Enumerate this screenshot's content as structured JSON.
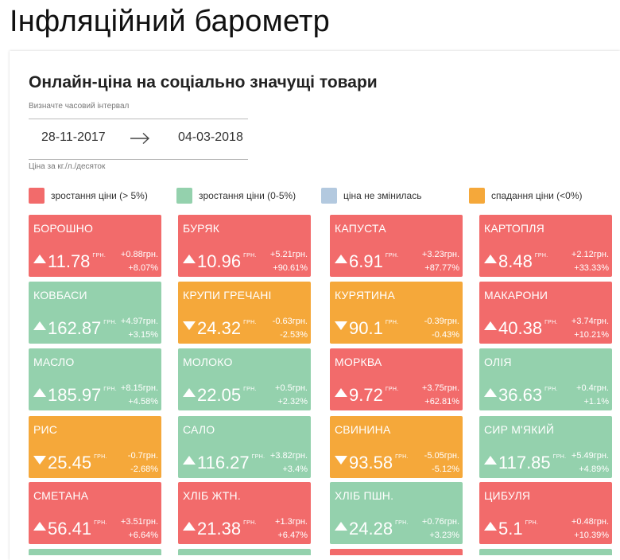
{
  "page": {
    "title": "Інфляційний барометр"
  },
  "widget": {
    "title": "Онлайн-ціна на соціально значущі товари",
    "interval_label": "Визначте часовий інтервал",
    "date_from": "28-11-2017",
    "date_to": "04-03-2018",
    "unit_note": "Ціна за кг./л./десяток"
  },
  "colors": {
    "strong_rise": "#f26b6b",
    "mild_rise": "#94d1ad",
    "no_change": "#b3c9df",
    "fall": "#f5a83a"
  },
  "legend": [
    {
      "label": "зростання ціни (> 5%)",
      "status": "strong_rise"
    },
    {
      "label": "зростання ціни (0-5%)",
      "status": "mild_rise"
    },
    {
      "label": "ціна не змінилась",
      "status": "no_change"
    },
    {
      "label": "спадання ціни (<0%)",
      "status": "fall"
    }
  ],
  "currency_short": "ГРН.",
  "products": [
    {
      "name": "БОРОШНО",
      "price": "11.78",
      "abs_change": "+0.88грн.",
      "pct_change": "+8.07%",
      "direction": "up",
      "status": "strong_rise"
    },
    {
      "name": "БУРЯК",
      "price": "10.96",
      "abs_change": "+5.21грн.",
      "pct_change": "+90.61%",
      "direction": "up",
      "status": "strong_rise"
    },
    {
      "name": "КАПУСТА",
      "price": "6.91",
      "abs_change": "+3.23грн.",
      "pct_change": "+87.77%",
      "direction": "up",
      "status": "strong_rise"
    },
    {
      "name": "КАРТОПЛЯ",
      "price": "8.48",
      "abs_change": "+2.12грн.",
      "pct_change": "+33.33%",
      "direction": "up",
      "status": "strong_rise"
    },
    {
      "name": "КОВБАСИ",
      "price": "162.87",
      "abs_change": "+4.97грн.",
      "pct_change": "+3.15%",
      "direction": "up",
      "status": "mild_rise"
    },
    {
      "name": "КРУПИ ГРЕЧАНІ",
      "price": "24.32",
      "abs_change": "-0.63грн.",
      "pct_change": "-2.53%",
      "direction": "down",
      "status": "fall"
    },
    {
      "name": "КУРЯТИНА",
      "price": "90.1",
      "abs_change": "-0.39грн.",
      "pct_change": "-0.43%",
      "direction": "down",
      "status": "fall"
    },
    {
      "name": "МАКАРОНИ",
      "price": "40.38",
      "abs_change": "+3.74грн.",
      "pct_change": "+10.21%",
      "direction": "up",
      "status": "strong_rise"
    },
    {
      "name": "МАСЛО",
      "price": "185.97",
      "abs_change": "+8.15грн.",
      "pct_change": "+4.58%",
      "direction": "up",
      "status": "mild_rise"
    },
    {
      "name": "МОЛОКО",
      "price": "22.05",
      "abs_change": "+0.5грн.",
      "pct_change": "+2.32%",
      "direction": "up",
      "status": "mild_rise"
    },
    {
      "name": "МОРКВА",
      "price": "9.72",
      "abs_change": "+3.75грн.",
      "pct_change": "+62.81%",
      "direction": "up",
      "status": "strong_rise"
    },
    {
      "name": "ОЛІЯ",
      "price": "36.63",
      "abs_change": "+0.4грн.",
      "pct_change": "+1.1%",
      "direction": "up",
      "status": "mild_rise"
    },
    {
      "name": "РИС",
      "price": "25.45",
      "abs_change": "-0.7грн.",
      "pct_change": "-2.68%",
      "direction": "down",
      "status": "fall"
    },
    {
      "name": "САЛО",
      "price": "116.27",
      "abs_change": "+3.82грн.",
      "pct_change": "+3.4%",
      "direction": "up",
      "status": "mild_rise"
    },
    {
      "name": "СВИНИНА",
      "price": "93.58",
      "abs_change": "-5.05грн.",
      "pct_change": "-5.12%",
      "direction": "down",
      "status": "fall"
    },
    {
      "name": "СИР М'ЯКИЙ",
      "price": "117.85",
      "abs_change": "+5.49грн.",
      "pct_change": "+4.89%",
      "direction": "up",
      "status": "mild_rise"
    },
    {
      "name": "СМЕТАНА",
      "price": "56.41",
      "abs_change": "+3.51грн.",
      "pct_change": "+6.64%",
      "direction": "up",
      "status": "strong_rise"
    },
    {
      "name": "ХЛІБ ЖТН.",
      "price": "21.38",
      "abs_change": "+1.3грн.",
      "pct_change": "+6.47%",
      "direction": "up",
      "status": "strong_rise"
    },
    {
      "name": "ХЛІБ ПШН.",
      "price": "24.28",
      "abs_change": "+0.76грн.",
      "pct_change": "+3.23%",
      "direction": "up",
      "status": "mild_rise"
    },
    {
      "name": "ЦИБУЛЯ",
      "price": "5.1",
      "abs_change": "+0.48грн.",
      "pct_change": "+10.39%",
      "direction": "up",
      "status": "strong_rise"
    }
  ],
  "partial_row_statuses": [
    "mild_rise",
    "mild_rise",
    "strong_rise",
    "mild_rise"
  ]
}
